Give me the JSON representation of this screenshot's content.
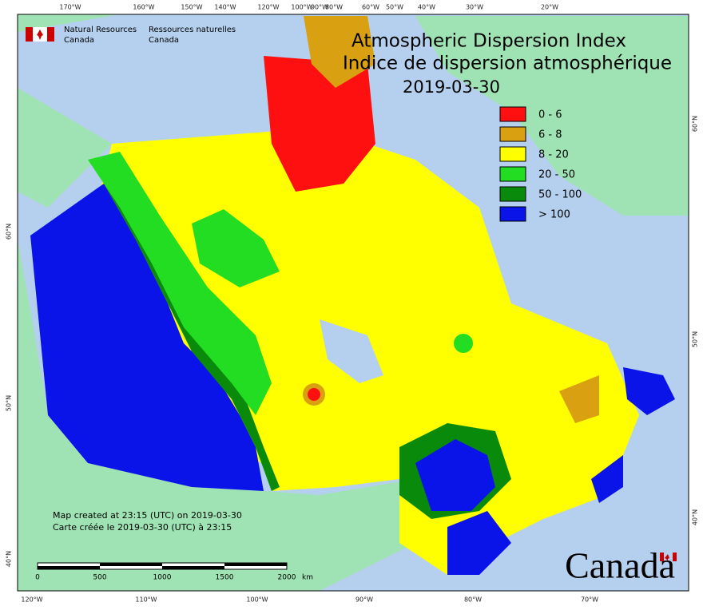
{
  "header": {
    "title_en": "Atmospheric Dispersion Index",
    "title_fr": "Indice de dispersion atmosphérique",
    "date": "2019-03-30"
  },
  "agency": {
    "en_1": "Natural Resources",
    "en_2": "Canada",
    "fr_1": "Ressources naturelles",
    "fr_2": "Canada"
  },
  "legend": {
    "items": [
      {
        "label": "0 - 6",
        "color": "#ff1010"
      },
      {
        "label": "6 - 8",
        "color": "#d9a012"
      },
      {
        "label": "8 - 20",
        "color": "#ffff00"
      },
      {
        "label": "20 - 50",
        "color": "#22dd22"
      },
      {
        "label": "50 - 100",
        "color": "#0a8a0a"
      },
      {
        "label": "> 100",
        "color": "#0a14e8"
      }
    ]
  },
  "graticule": {
    "top": [
      "170°W",
      "160°W",
      "150°W",
      "140°W",
      "120°W",
      "100°W",
      "90°W",
      "80°W",
      "60°W",
      "50°W",
      "40°W",
      "30°W",
      "20°W"
    ],
    "bottom": [
      "120°W",
      "110°W",
      "100°W",
      "90°W",
      "80°W",
      "70°W"
    ],
    "left": [
      "60°N",
      "50°N",
      "40°N"
    ],
    "right": [
      "60°N",
      "50°N",
      "40°N"
    ]
  },
  "notes": {
    "created_en": "Map created at 23:15 (UTC) on 2019-03-30",
    "created_fr": "Carte créée le 2019-03-30 (UTC) à 23:15"
  },
  "scale": {
    "labels": [
      "0",
      "500",
      "1000",
      "1500",
      "2000"
    ],
    "unit": "km"
  },
  "wordmark": "Canada"
}
